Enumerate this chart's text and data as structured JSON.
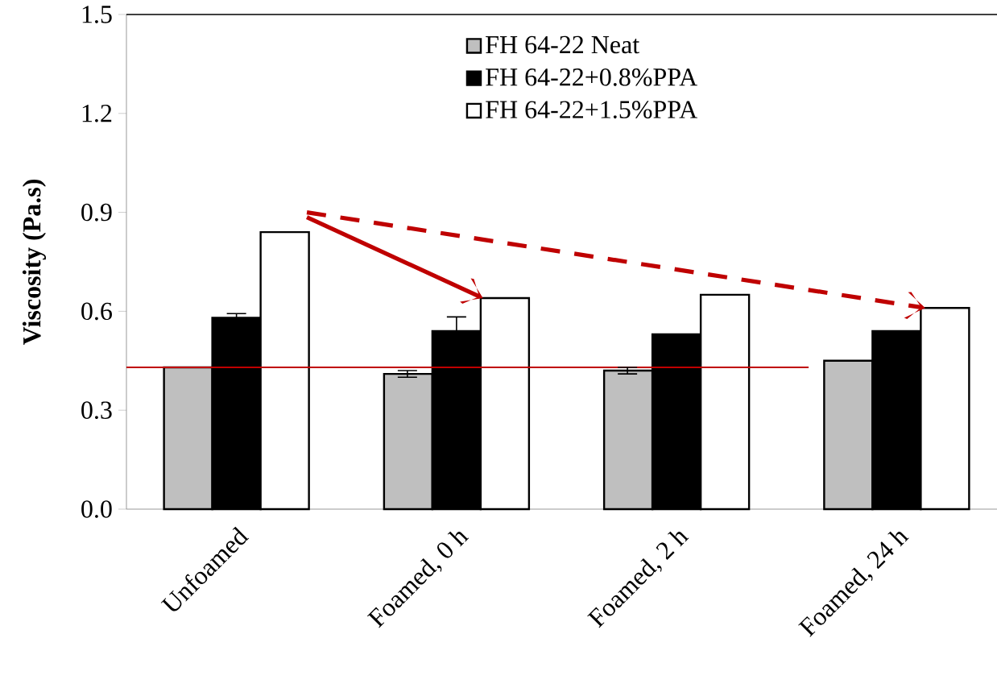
{
  "chart_data": {
    "type": "bar",
    "ylabel": "Viscosity (Pa.s)",
    "categories": [
      "Unfoamed",
      "Foamed, 0 h",
      "Foamed, 2 h",
      "Foamed, 24 h"
    ],
    "series": [
      {
        "name": "FH 64-22 Neat",
        "color": "#bfbfbf",
        "values": [
          0.43,
          0.41,
          0.42,
          0.45
        ],
        "errors": [
          null,
          0.01,
          0.01,
          null
        ]
      },
      {
        "name": "FH 64-22+0.8%PPA",
        "color": "#000000",
        "values": [
          0.58,
          0.54,
          0.53,
          0.54
        ],
        "errors": [
          0.013,
          0.043,
          null,
          null
        ]
      },
      {
        "name": "FH 64-22+1.5%PPA",
        "color": "#ffffff",
        "values": [
          0.84,
          0.64,
          0.65,
          0.61
        ]
      }
    ],
    "ylim": [
      0,
      1.5
    ],
    "yticks": [
      {
        "value": 0,
        "label": "0.0"
      },
      0.3,
      0.6,
      0.9,
      1.2,
      1.5
    ],
    "ref_lines": [
      {
        "axis": "y",
        "value": 0.43,
        "color": "#c00000"
      }
    ],
    "legend": "top right",
    "grid": false
  }
}
